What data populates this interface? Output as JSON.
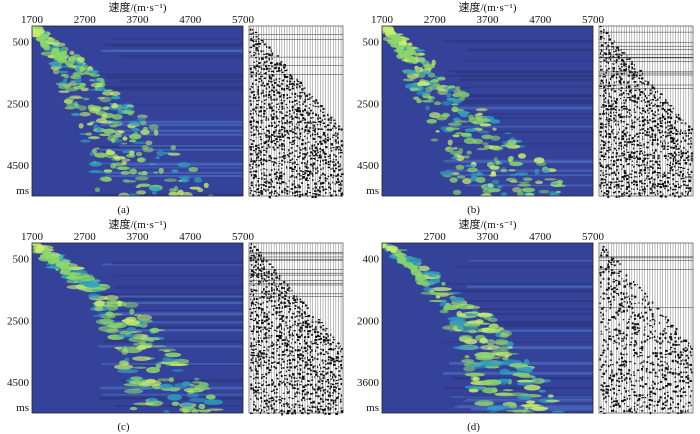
{
  "figure": {
    "panels": [
      {
        "label": "(a)",
        "xlabel": "速度/(m·s⁻¹)",
        "unit": "ms",
        "xticks": [
          "1700",
          "2700",
          "3700",
          "4700",
          "5700"
        ],
        "yticks": [
          "500",
          "2500",
          "4500"
        ]
      },
      {
        "label": "(b)",
        "xlabel": "速度/(m·s⁻¹)",
        "unit": "ms",
        "xticks": [
          "1700",
          "2700",
          "3700",
          "4700",
          "5700"
        ],
        "yticks": [
          "500",
          "2500",
          "4500"
        ]
      },
      {
        "label": "(c)",
        "xlabel": "速度/(m·s⁻¹)",
        "unit": "ms",
        "xticks": [
          "1700",
          "2700",
          "3700",
          "4700",
          "5700"
        ],
        "yticks": [
          "500",
          "2500",
          "4500"
        ]
      },
      {
        "label": "(d)",
        "xlabel": "速度/(m·s⁻¹)",
        "unit": "ms",
        "xticks": [
          "2700",
          "3700",
          "4700",
          "5700"
        ],
        "yticks": [
          "400",
          "2000",
          "3600"
        ]
      }
    ]
  },
  "colors": {
    "background": "#35429a",
    "low": "#3a4ea8",
    "mid": "#2fa0c0",
    "high": "#8ad66a",
    "peak": "#c9ec6e"
  },
  "chart_data": [
    {
      "type": "heatmap",
      "title": "",
      "xlabel": "速度/(m·s⁻¹)",
      "ylabel": "ms",
      "xlim": [
        1700,
        5700
      ],
      "ylim": [
        5500,
        0
      ],
      "xticks": [
        1700,
        2700,
        3700,
        4700,
        5700
      ],
      "yticks": [
        500,
        2500,
        4500
      ],
      "legend": "none",
      "grid": false,
      "description_series": [
        {
          "t": [
            0,
            1000,
            2000,
            3000,
            4000,
            5000
          ],
          "v": [
            1700,
            2200,
            2500,
            2900,
            3300,
            3600
          ]
        }
      ]
    },
    {
      "type": "heatmap",
      "title": "",
      "xlabel": "速度/(m·s⁻¹)",
      "ylabel": "ms",
      "xlim": [
        1700,
        5700
      ],
      "ylim": [
        5500,
        0
      ],
      "xticks": [
        1700,
        2700,
        3700,
        4700,
        5700
      ],
      "yticks": [
        500,
        2500,
        4500
      ],
      "legend": "none",
      "grid": false,
      "description_series": [
        {
          "t": [
            0,
            1000,
            2000,
            3000,
            4000,
            5000
          ],
          "v": [
            1700,
            2200,
            2500,
            2900,
            3300,
            3600
          ]
        }
      ]
    },
    {
      "type": "heatmap",
      "title": "",
      "xlabel": "速度/(m·s⁻¹)",
      "ylabel": "ms",
      "xlim": [
        1700,
        5700
      ],
      "ylim": [
        5500,
        0
      ],
      "xticks": [
        1700,
        2700,
        3700,
        4700,
        5700
      ],
      "yticks": [
        500,
        2500,
        4500
      ],
      "legend": "none",
      "grid": false,
      "description_series": [
        {
          "t": [
            0,
            1000,
            2000,
            3000,
            4000,
            5000
          ],
          "v": [
            1700,
            2400,
            3100,
            3500,
            3800,
            4000
          ]
        }
      ]
    },
    {
      "type": "heatmap",
      "title": "",
      "xlabel": "速度/(m·s⁻¹)",
      "ylabel": "ms",
      "xlim": [
        1700,
        5700
      ],
      "ylim": [
        4400,
        0
      ],
      "xticks": [
        2700,
        3700,
        4700,
        5700
      ],
      "yticks": [
        400,
        2000,
        3600
      ],
      "legend": "none",
      "grid": false,
      "description_series": [
        {
          "t": [
            0,
            800,
            1600,
            2400,
            3200,
            4000
          ],
          "v": [
            1700,
            2400,
            3000,
            3400,
            3700,
            3900
          ]
        }
      ]
    }
  ]
}
